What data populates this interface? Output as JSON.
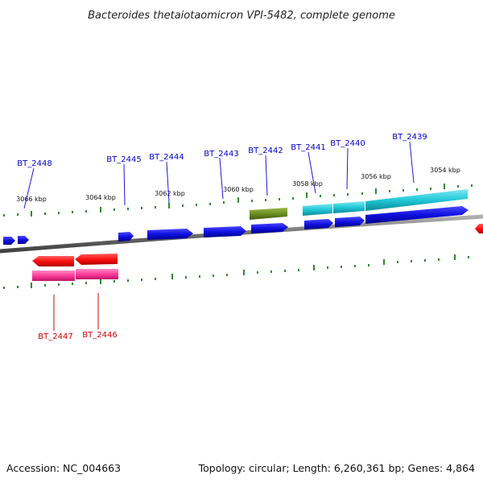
{
  "title": "Bacteroides thetaiotaomicron VPI-5482, complete genome",
  "footer": {
    "accession": "Accession: NC_004663",
    "summary": "Topology: circular; Length: 6,260,361 bp; Genes: 4,864"
  },
  "colors": {
    "forward_cds": "#1010e0",
    "forward_rna": "#20c8d8",
    "forward_alt": "#6b8e23",
    "reverse_cds": "#ff1010",
    "reverse_rna": "#ff3d9a",
    "backbone": "#808080",
    "ticks": "#2e8b2e",
    "forward_label": "#0000c8",
    "reverse_label": "#d00000"
  },
  "forward_labels": [
    "BT_2448",
    "BT_2445",
    "BT_2444",
    "BT_2443",
    "BT_2442",
    "BT_2441",
    "BT_2440",
    "BT_2439"
  ],
  "reverse_labels": [
    "BT_2447",
    "BT_2446"
  ],
  "kbp_ticks": [
    "3066 kbp",
    "3064 kbp",
    "3062 kbp",
    "3060 kbp",
    "3058 kbp",
    "3056 kbp",
    "3054 kbp"
  ]
}
